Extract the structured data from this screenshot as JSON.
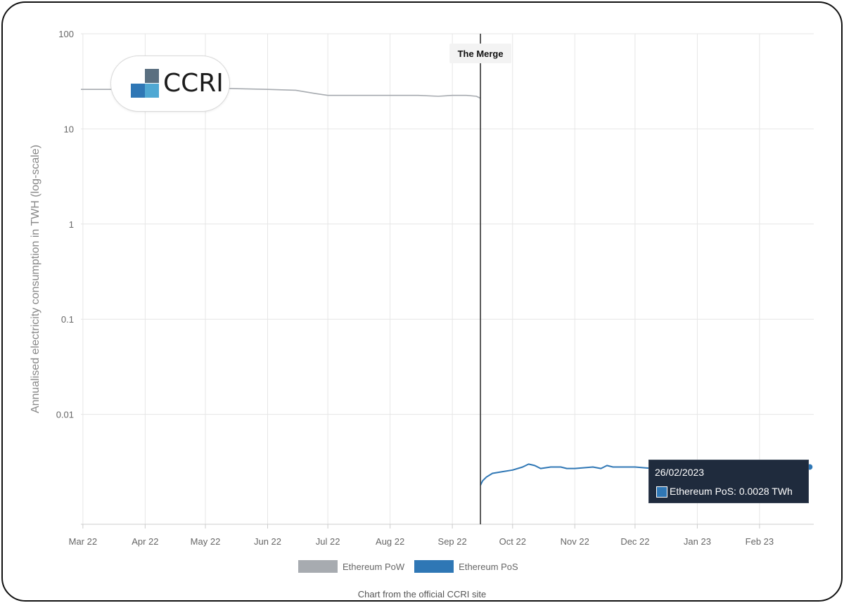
{
  "chart_data": {
    "type": "line",
    "title": "",
    "ylabel": "Annualised electricity consumption in TWH (log-scale)",
    "xlabel": "",
    "y_scale": "log",
    "ylim": [
      0.0007,
      100
    ],
    "y_ticks": [
      {
        "value": 100,
        "label": "100"
      },
      {
        "value": 10,
        "label": "10"
      },
      {
        "value": 1,
        "label": "1"
      },
      {
        "value": 0.1,
        "label": "0.1"
      },
      {
        "value": 0.01,
        "label": "0.01"
      }
    ],
    "xlim": [
      "2022-02-28",
      "2023-02-28"
    ],
    "x_ticks": [
      {
        "date": "2022-03-01",
        "label": "Mar 22"
      },
      {
        "date": "2022-04-01",
        "label": "Apr 22"
      },
      {
        "date": "2022-05-01",
        "label": "May 22"
      },
      {
        "date": "2022-06-01",
        "label": "Jun 22"
      },
      {
        "date": "2022-07-01",
        "label": "Jul 22"
      },
      {
        "date": "2022-08-01",
        "label": "Aug 22"
      },
      {
        "date": "2022-09-01",
        "label": "Sep 22"
      },
      {
        "date": "2022-10-01",
        "label": "Oct 22"
      },
      {
        "date": "2022-11-01",
        "label": "Nov 22"
      },
      {
        "date": "2022-12-01",
        "label": "Dec 22"
      },
      {
        "date": "2023-01-01",
        "label": "Jan 23"
      },
      {
        "date": "2023-02-01",
        "label": "Feb 23"
      }
    ],
    "grid": true,
    "legend_position": "bottom-center",
    "annotation": {
      "date": "2022-09-15",
      "label": "The Merge"
    },
    "series": [
      {
        "name": "Ethereum PoW",
        "color": "#a7abb0",
        "points": [
          [
            "2022-02-28",
            26
          ],
          [
            "2022-03-15",
            26
          ],
          [
            "2022-04-01",
            27.5
          ],
          [
            "2022-04-15",
            27.5
          ],
          [
            "2022-05-01",
            27
          ],
          [
            "2022-05-15",
            26.5
          ],
          [
            "2022-06-01",
            26
          ],
          [
            "2022-06-15",
            25.5
          ],
          [
            "2022-06-25",
            23.5
          ],
          [
            "2022-07-01",
            22.5
          ],
          [
            "2022-07-15",
            22.5
          ],
          [
            "2022-08-01",
            22.5
          ],
          [
            "2022-08-15",
            22.5
          ],
          [
            "2022-08-25",
            22
          ],
          [
            "2022-09-01",
            22.5
          ],
          [
            "2022-09-08",
            22.5
          ],
          [
            "2022-09-13",
            22
          ],
          [
            "2022-09-15",
            21
          ]
        ]
      },
      {
        "name": "Ethereum PoS",
        "color": "#2f77b5",
        "points": [
          [
            "2022-09-15",
            0.0018
          ],
          [
            "2022-09-16",
            0.002
          ],
          [
            "2022-09-18",
            0.0022
          ],
          [
            "2022-09-21",
            0.0024
          ],
          [
            "2022-09-26",
            0.0025
          ],
          [
            "2022-10-01",
            0.0026
          ],
          [
            "2022-10-06",
            0.0028
          ],
          [
            "2022-10-09",
            0.003
          ],
          [
            "2022-10-12",
            0.0029
          ],
          [
            "2022-10-15",
            0.0027
          ],
          [
            "2022-10-20",
            0.0028
          ],
          [
            "2022-10-25",
            0.0028
          ],
          [
            "2022-10-28",
            0.0027
          ],
          [
            "2022-11-01",
            0.0027
          ],
          [
            "2022-11-10",
            0.0028
          ],
          [
            "2022-11-14",
            0.0027
          ],
          [
            "2022-11-17",
            0.0029
          ],
          [
            "2022-11-20",
            0.0028
          ],
          [
            "2022-11-25",
            0.0028
          ],
          [
            "2022-12-01",
            0.0028
          ],
          [
            "2022-12-10",
            0.0027
          ],
          [
            "2022-12-20",
            0.0027
          ],
          [
            "2023-01-01",
            0.0027
          ],
          [
            "2023-01-15",
            0.0027
          ],
          [
            "2023-02-01",
            0.0027
          ],
          [
            "2023-02-15",
            0.0027
          ],
          [
            "2023-02-26",
            0.0028
          ]
        ]
      }
    ],
    "tooltip": {
      "date": "26/02/2023",
      "text": "Ethereum PoS: 0.0028 TWh"
    }
  },
  "logo": {
    "text": "CCRI"
  },
  "caption": "Chart from the official CCRI site"
}
